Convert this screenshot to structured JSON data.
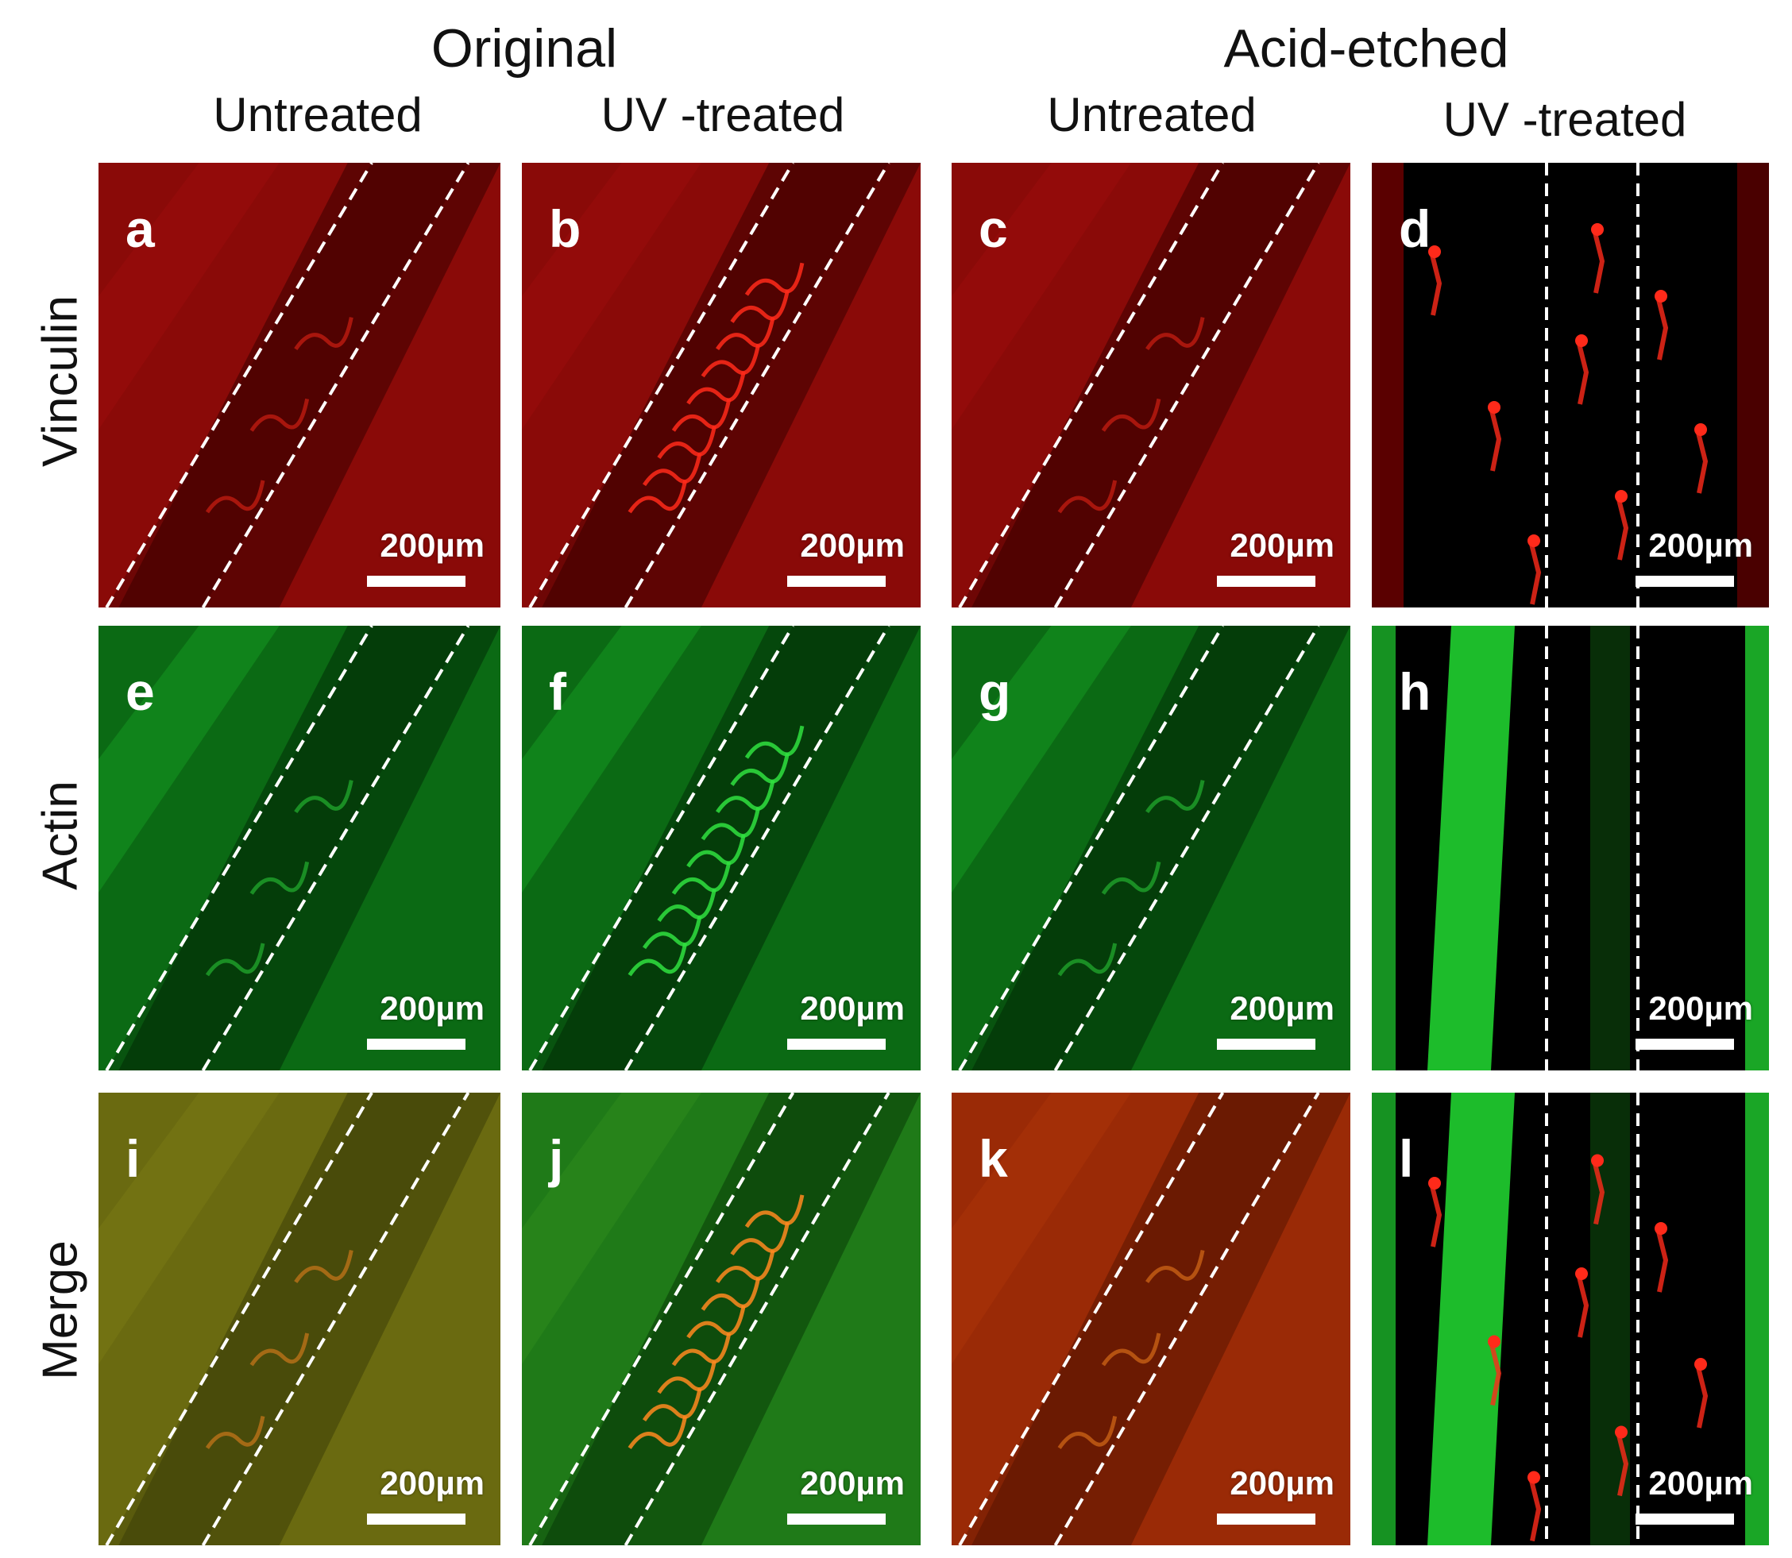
{
  "groups": [
    "Original",
    "Acid-etched"
  ],
  "columns": [
    "Untreated",
    "UV -treated",
    "Untreated",
    "UV -treated"
  ],
  "rows": [
    "Vinculin",
    "Actin",
    "Merge"
  ],
  "scale_label": "200µm",
  "panels": [
    {
      "letter": "a",
      "channel": "red"
    },
    {
      "letter": "b",
      "channel": "red"
    },
    {
      "letter": "c",
      "channel": "red"
    },
    {
      "letter": "d",
      "channel": "red"
    },
    {
      "letter": "e",
      "channel": "green"
    },
    {
      "letter": "f",
      "channel": "green"
    },
    {
      "letter": "g",
      "channel": "green"
    },
    {
      "letter": "h",
      "channel": "green"
    },
    {
      "letter": "i",
      "channel": "merge"
    },
    {
      "letter": "j",
      "channel": "merge"
    },
    {
      "letter": "k",
      "channel": "merge"
    },
    {
      "letter": "l",
      "channel": "merge"
    }
  ],
  "colors": {
    "red_bg": "#8a0a08",
    "red_dark": "#3a0000",
    "red_cell": "#ff2a1a",
    "green_bg": "#0b6a14",
    "green_dark": "#022c06",
    "green_bright": "#20d030",
    "olive_bg": "#6a6a10",
    "orange_bg": "#9a2a06",
    "orange_cell": "#ff8a20",
    "dash": "#ffffff"
  }
}
